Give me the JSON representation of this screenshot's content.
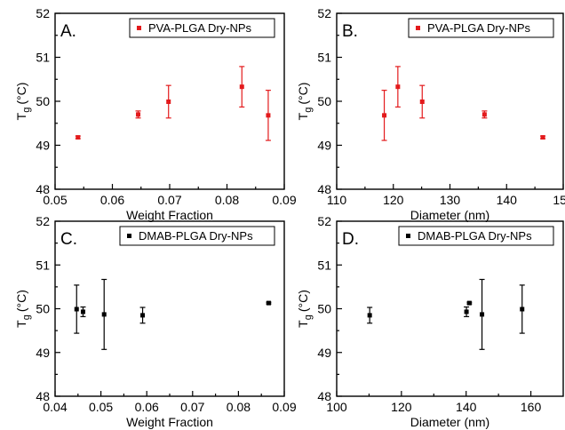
{
  "chart_data": [
    {
      "type": "scatter",
      "panel_label": "A.",
      "xlabel": "Weight Fraction",
      "ylabel_main": "T",
      "ylabel_sub": "g",
      "ylabel_unit": "(°C)",
      "xlim": [
        0.05,
        0.09
      ],
      "ylim": [
        48,
        52
      ],
      "xticks": [
        "0.05",
        "0.06",
        "0.07",
        "0.08",
        "0.09"
      ],
      "xtick_values": [
        0.05,
        0.06,
        0.07,
        0.08,
        0.09
      ],
      "yticks": [
        "48",
        "49",
        "50",
        "51",
        "52"
      ],
      "ytick_values": [
        48,
        49,
        50,
        51,
        52
      ],
      "legend_position": "top-right",
      "series": [
        {
          "name": "PVA-PLGA Dry-NPs",
          "color": "#e31a1c",
          "x": [
            0.054,
            0.0645,
            0.0698,
            0.0826,
            0.0872
          ],
          "y": [
            49.18,
            49.7,
            49.99,
            50.33,
            49.68
          ],
          "err": [
            0.03,
            0.08,
            0.37,
            0.46,
            0.57
          ]
        }
      ]
    },
    {
      "type": "scatter",
      "panel_label": "B.",
      "xlabel": "Diameter (nm)",
      "ylabel_main": "T",
      "ylabel_sub": "g",
      "ylabel_unit": "(°C)",
      "xlim": [
        110,
        150
      ],
      "ylim": [
        48,
        52
      ],
      "xticks": [
        "110",
        "120",
        "130",
        "140",
        "150"
      ],
      "xtick_values": [
        110,
        120,
        130,
        140,
        150
      ],
      "yticks": [
        "48",
        "49",
        "50",
        "51",
        "52"
      ],
      "ytick_values": [
        48,
        49,
        50,
        51,
        52
      ],
      "legend_position": "top-right",
      "series": [
        {
          "name": "PVA-PLGA Dry-NPs",
          "color": "#e31a1c",
          "x": [
            118.4,
            120.8,
            125.1,
            136.1,
            146.4
          ],
          "y": [
            49.68,
            50.33,
            49.99,
            49.7,
            49.18
          ],
          "err": [
            0.57,
            0.46,
            0.37,
            0.08,
            0.03
          ]
        }
      ]
    },
    {
      "type": "scatter",
      "panel_label": "C.",
      "xlabel": "Weight Fraction",
      "ylabel_main": "T",
      "ylabel_sub": "g",
      "ylabel_unit": "(°C)",
      "xlim": [
        0.04,
        0.09
      ],
      "ylim": [
        48,
        52
      ],
      "xticks": [
        "0.04",
        "0.05",
        "0.06",
        "0.07",
        "0.08",
        "0.09"
      ],
      "xtick_values": [
        0.04,
        0.05,
        0.06,
        0.07,
        0.08,
        0.09
      ],
      "yticks": [
        "48",
        "49",
        "50",
        "51",
        "52"
      ],
      "ytick_values": [
        48,
        49,
        50,
        51,
        52
      ],
      "legend_position": "top-right",
      "series": [
        {
          "name": "DMAB-PLGA Dry-NPs",
          "color": "#000000",
          "x": [
            0.0447,
            0.0461,
            0.0507,
            0.0591,
            0.0866
          ],
          "y": [
            49.99,
            49.93,
            49.87,
            49.85,
            50.13
          ],
          "err": [
            0.55,
            0.11,
            0.8,
            0.18,
            0.02
          ]
        }
      ]
    },
    {
      "type": "scatter",
      "panel_label": "D.",
      "xlabel": "Diameter (nm)",
      "ylabel_main": "T",
      "ylabel_sub": "g",
      "ylabel_unit": "(°C)",
      "xlim": [
        100,
        170
      ],
      "ylim": [
        48,
        52
      ],
      "xticks": [
        "100",
        "120",
        "140",
        "160"
      ],
      "xtick_values": [
        100,
        120,
        140,
        160
      ],
      "yticks": [
        "48",
        "49",
        "50",
        "51",
        "52"
      ],
      "ytick_values": [
        48,
        49,
        50,
        51,
        52
      ],
      "legend_position": "top-right",
      "series": [
        {
          "name": "DMAB-PLGA Dry-NPs",
          "color": "#000000",
          "x": [
            110.2,
            140.1,
            141.0,
            144.9,
            157.3
          ],
          "y": [
            49.85,
            49.93,
            50.13,
            49.87,
            49.99
          ],
          "err": [
            0.18,
            0.11,
            0.02,
            0.8,
            0.55
          ]
        }
      ]
    }
  ]
}
